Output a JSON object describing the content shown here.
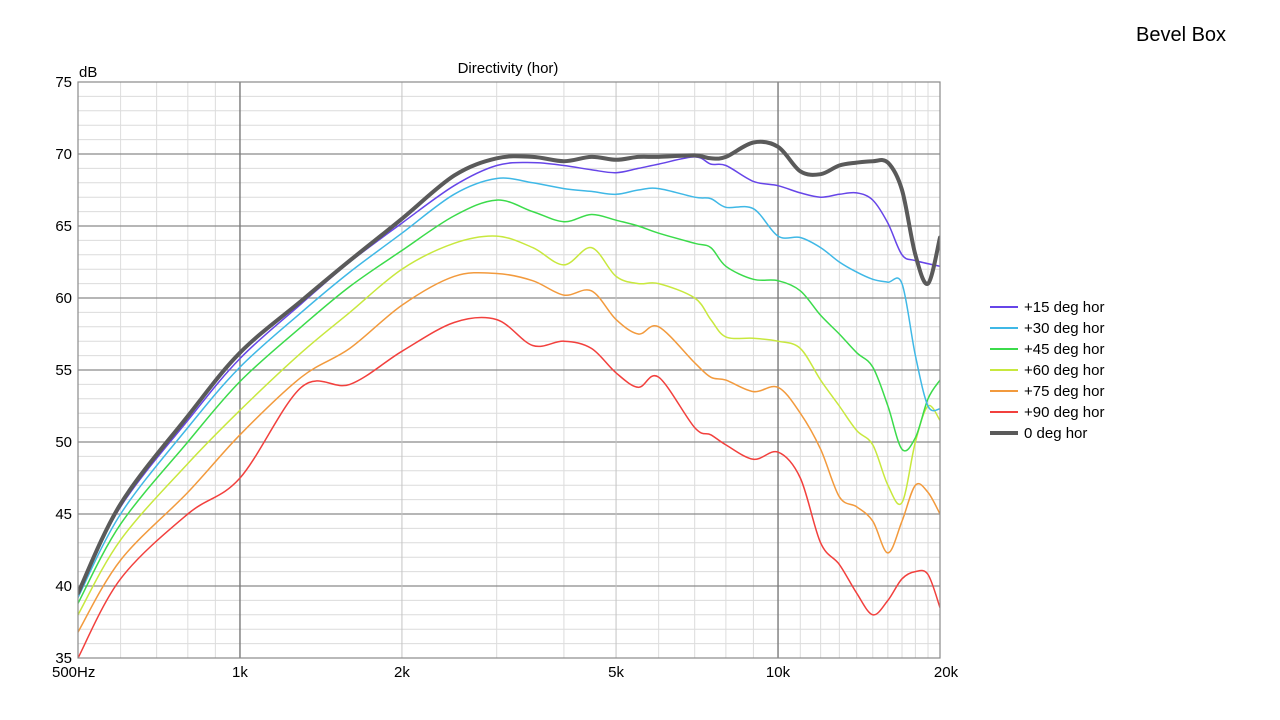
{
  "corner_label": "Bevel Box",
  "chart_data": {
    "type": "line",
    "title": "Directivity (hor)",
    "xlabel": "",
    "ylabel": "dB",
    "xscale": "log",
    "xlim": [
      500,
      20000
    ],
    "ylim": [
      35,
      75
    ],
    "grid": true,
    "legend_position": "right",
    "x_ticks": [
      {
        "value": 500,
        "label": "500Hz"
      },
      {
        "value": 1000,
        "label": "1k"
      },
      {
        "value": 2000,
        "label": "2k"
      },
      {
        "value": 5000,
        "label": "5k"
      },
      {
        "value": 10000,
        "label": "10k"
      },
      {
        "value": 20000,
        "label": "20k"
      }
    ],
    "y_ticks": [
      35,
      40,
      45,
      50,
      55,
      60,
      65,
      70,
      75
    ],
    "x_minor_ticks": [
      600,
      700,
      800,
      900,
      3000,
      4000,
      6000,
      7000,
      8000,
      9000
    ],
    "series": [
      {
        "name": "+15 deg hor",
        "color": "#6645E8",
        "x": [
          500,
          600,
          800,
          1000,
          1300,
          1600,
          2000,
          2500,
          3000,
          3500,
          4000,
          4500,
          5000,
          5500,
          6000,
          7000,
          7500,
          8000,
          9000,
          10000,
          11000,
          12000,
          13000,
          14000,
          15000,
          16000,
          17000,
          18000,
          20000
        ],
        "y": [
          39.5,
          45.5,
          51.5,
          55.8,
          59.6,
          62.5,
          65.2,
          67.8,
          69.2,
          69.4,
          69.2,
          68.9,
          68.7,
          69.0,
          69.3,
          69.8,
          69.3,
          69.2,
          68.1,
          67.8,
          67.3,
          67.0,
          67.2,
          67.3,
          66.8,
          65.2,
          63.0,
          62.6,
          62.2
        ]
      },
      {
        "name": "+30 deg hor",
        "color": "#3FB8E6",
        "x": [
          500,
          600,
          800,
          1000,
          1300,
          1600,
          2000,
          2500,
          3000,
          3500,
          4000,
          4500,
          5000,
          5500,
          6000,
          7000,
          7500,
          8000,
          9000,
          10000,
          11000,
          12000,
          13000,
          14000,
          15000,
          16000,
          17000,
          18000,
          19000,
          20000
        ],
        "y": [
          39.2,
          45.0,
          51.0,
          55.2,
          59.0,
          61.8,
          64.5,
          67.2,
          68.3,
          68.0,
          67.6,
          67.4,
          67.2,
          67.5,
          67.6,
          67.0,
          66.9,
          66.3,
          66.2,
          64.3,
          64.2,
          63.5,
          62.5,
          61.8,
          61.3,
          61.1,
          61.0,
          56.0,
          52.5,
          52.3
        ]
      },
      {
        "name": "+45 deg hor",
        "color": "#3BDB4B",
        "x": [
          500,
          600,
          800,
          1000,
          1300,
          1600,
          2000,
          2500,
          3000,
          3500,
          4000,
          4500,
          5000,
          5500,
          6000,
          7000,
          7500,
          8000,
          9000,
          10000,
          11000,
          12000,
          13000,
          14000,
          15000,
          16000,
          17000,
          18000,
          19000,
          20000
        ],
        "y": [
          38.8,
          44.3,
          50.0,
          54.2,
          58.0,
          60.8,
          63.3,
          65.7,
          66.8,
          66.0,
          65.3,
          65.8,
          65.4,
          65.0,
          64.5,
          63.8,
          63.5,
          62.2,
          61.3,
          61.2,
          60.5,
          58.8,
          57.5,
          56.2,
          55.2,
          52.5,
          49.5,
          50.3,
          53.0,
          54.3
        ]
      },
      {
        "name": "+60 deg hor",
        "color": "#C8E83E",
        "x": [
          500,
          600,
          800,
          1000,
          1300,
          1600,
          2000,
          2500,
          3000,
          3500,
          4000,
          4500,
          5000,
          5500,
          6000,
          7000,
          7500,
          8000,
          9000,
          10000,
          11000,
          12000,
          13000,
          14000,
          15000,
          16000,
          17000,
          18000,
          19000,
          20000
        ],
        "y": [
          38.0,
          43.2,
          48.5,
          52.2,
          56.2,
          59.0,
          62.0,
          63.8,
          64.3,
          63.5,
          62.3,
          63.5,
          61.5,
          61.0,
          61.0,
          60.0,
          58.5,
          57.3,
          57.2,
          57.0,
          56.5,
          54.3,
          52.5,
          50.8,
          49.8,
          47.0,
          45.8,
          50.0,
          52.5,
          51.5
        ]
      },
      {
        "name": "+75 deg hor",
        "color": "#F29A3D",
        "x": [
          500,
          600,
          800,
          1000,
          1300,
          1600,
          2000,
          2500,
          3000,
          3500,
          4000,
          4500,
          5000,
          5500,
          6000,
          7000,
          7500,
          8000,
          9000,
          10000,
          11000,
          12000,
          13000,
          14000,
          15000,
          16000,
          17000,
          18000,
          19000,
          20000
        ],
        "y": [
          36.8,
          41.8,
          46.5,
          50.5,
          54.5,
          56.5,
          59.5,
          61.5,
          61.7,
          61.2,
          60.2,
          60.5,
          58.5,
          57.5,
          58.0,
          55.5,
          54.5,
          54.3,
          53.5,
          53.8,
          52.0,
          49.5,
          46.2,
          45.5,
          44.5,
          42.3,
          44.5,
          47.0,
          46.5,
          45.0
        ]
      },
      {
        "name": "+90 deg hor",
        "color": "#F2403D",
        "x": [
          500,
          600,
          800,
          1000,
          1300,
          1600,
          2000,
          2500,
          3000,
          3500,
          4000,
          4500,
          5000,
          5500,
          6000,
          7000,
          7500,
          8000,
          9000,
          10000,
          11000,
          12000,
          13000,
          14000,
          15000,
          16000,
          17000,
          18000,
          19000,
          20000
        ],
        "y": [
          35.0,
          40.5,
          45.0,
          47.5,
          53.8,
          54.0,
          56.3,
          58.3,
          58.5,
          56.7,
          57.0,
          56.5,
          54.8,
          53.8,
          54.5,
          51.0,
          50.5,
          49.8,
          48.8,
          49.3,
          47.5,
          43.0,
          41.5,
          39.5,
          38.0,
          39.0,
          40.5,
          41.0,
          40.8,
          38.5
        ]
      },
      {
        "name": "0 deg hor",
        "color": "#5A5A5A",
        "width": 4,
        "x": [
          500,
          600,
          800,
          1000,
          1300,
          1600,
          2000,
          2500,
          3000,
          3500,
          4000,
          4500,
          5000,
          5500,
          6000,
          7000,
          7500,
          8000,
          9000,
          10000,
          11000,
          12000,
          13000,
          14000,
          15000,
          16000,
          17000,
          18000,
          19000,
          20000
        ],
        "y": [
          39.5,
          45.7,
          51.8,
          56.2,
          59.8,
          62.6,
          65.5,
          68.5,
          69.7,
          69.8,
          69.5,
          69.8,
          69.6,
          69.8,
          69.8,
          69.9,
          69.7,
          69.8,
          70.8,
          70.5,
          68.8,
          68.6,
          69.2,
          69.4,
          69.5,
          69.4,
          67.5,
          63.0,
          61.0,
          64.2
        ]
      }
    ]
  }
}
